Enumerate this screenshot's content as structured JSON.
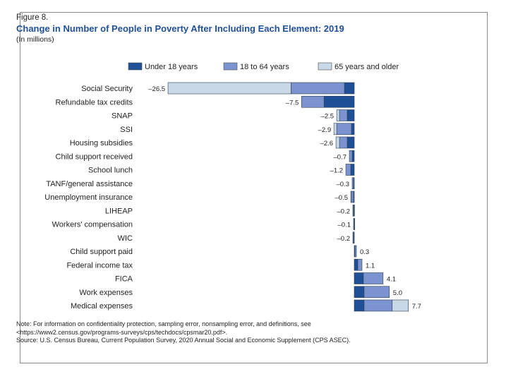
{
  "figure_label": "Figure 8.",
  "chart_data": {
    "type": "bar",
    "orientation": "horizontal",
    "stacked": true,
    "title": "Change in Number of People in Poverty After Including Each Element: 2019",
    "subtitle": "(In millions)",
    "categories": [
      "Social Security",
      "Refundable tax credits",
      "SNAP",
      "SSI",
      "Housing subsidies",
      "Child support received",
      "School lunch",
      "TANF/general assistance",
      "Unemployment insurance",
      "LIHEAP",
      "Workers' compensation",
      "WIC",
      "Child support paid",
      "Federal income tax",
      "FICA",
      "Work expenses",
      "Medical expenses"
    ],
    "totals": [
      -26.5,
      -7.5,
      -2.5,
      -2.9,
      -2.6,
      -0.7,
      -1.2,
      -0.3,
      -0.5,
      -0.2,
      -0.1,
      -0.2,
      0.3,
      1.1,
      4.1,
      5.0,
      7.7
    ],
    "total_labels": [
      "–26.5",
      "–7.5",
      "–2.5",
      "–2.9",
      "–2.6",
      "–0.7",
      "–1.2",
      "–0.3",
      "–0.5",
      "–0.2",
      "–0.1",
      "–0.2",
      "0.3",
      "1.1",
      "4.1",
      "5.0",
      "7.7"
    ],
    "series": [
      {
        "name": "Under 18 years",
        "color": "#1f4f96",
        "values": [
          -1.4,
          -4.3,
          -1.0,
          -0.4,
          -1.0,
          -0.3,
          -0.5,
          -0.1,
          -0.1,
          -0.05,
          -0.02,
          -0.1,
          0.1,
          0.5,
          1.3,
          1.4,
          1.4
        ]
      },
      {
        "name": "18 to 64 years",
        "color": "#7b93cf",
        "values": [
          -7.6,
          -3.2,
          -1.1,
          -2.1,
          -1.1,
          -0.4,
          -0.7,
          -0.2,
          -0.3,
          -0.1,
          -0.06,
          -0.1,
          0.2,
          0.6,
          2.8,
          3.6,
          4.0
        ]
      },
      {
        "name": "65 years and older",
        "color": "#c9d8e6",
        "values": [
          -17.5,
          0.0,
          -0.4,
          -0.4,
          -0.5,
          0.0,
          0.0,
          0.0,
          -0.1,
          -0.05,
          -0.02,
          0.0,
          0.0,
          0.0,
          0.0,
          0.0,
          2.3
        ]
      }
    ],
    "legend_position": "top",
    "grid": false
  },
  "notes": {
    "line1": "Note: For information on confidentiality protection, sampling error, nonsampling error, and definitions, see",
    "line2": "<https://www2.census.gov/programs-surveys/cps/techdocs/cpsmar20.pdf>.",
    "line3": "Source: U.S. Census Bureau, Current Population Survey, 2020 Annual Social and Economic Supplement (CPS ASEC)."
  }
}
